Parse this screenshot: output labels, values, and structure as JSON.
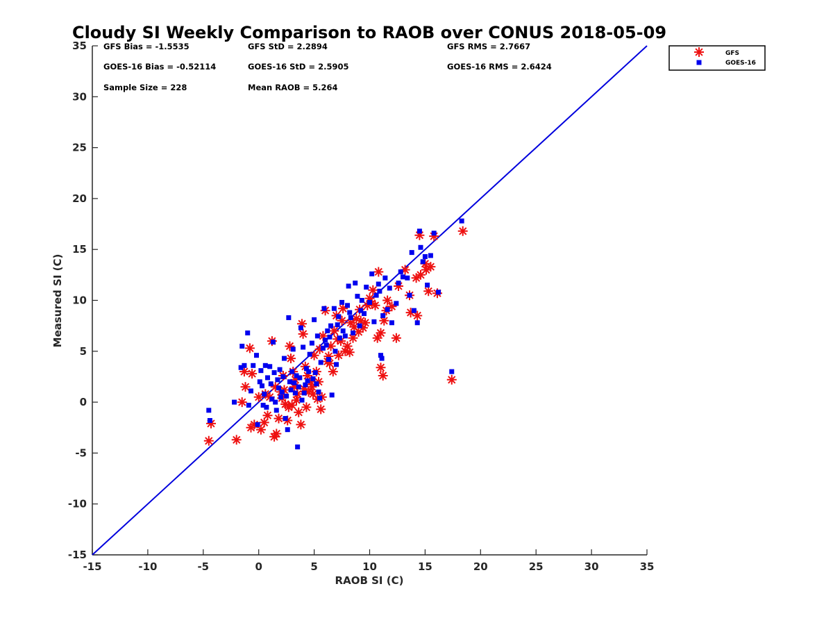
{
  "chart_data": {
    "type": "scatter",
    "title": "Cloudy SI Weekly Comparison to RAOB over CONUS 2018-05-09",
    "xlabel": "RAOB SI (C)",
    "ylabel": "Measured SI (C)",
    "xlim": [
      -15,
      35
    ],
    "ylim": [
      -15,
      35
    ],
    "xticks": [
      -15,
      -10,
      -5,
      0,
      5,
      10,
      15,
      20,
      25,
      30,
      35
    ],
    "yticks": [
      -15,
      -10,
      -5,
      0,
      5,
      10,
      15,
      20,
      25,
      30,
      35
    ],
    "grid": false,
    "legend_position": "top-right outside",
    "reference_line": {
      "x": [
        -15,
        35
      ],
      "y": [
        -15,
        35
      ],
      "color": "#0000dd"
    },
    "stats": [
      "GFS Bias = -1.5535",
      "GFS StD = 2.2894",
      "GFS RMS = 2.7667",
      "GOES-16 Bias = -0.52114",
      "GOES-16 StD = 2.5905",
      "GOES-16 RMS = 2.6424",
      "Sample Size = 228",
      "Mean RAOB = 5.264"
    ],
    "series": [
      {
        "name": "GFS",
        "marker": "asterisk",
        "color": "#ee1111",
        "points": [
          [
            -4.5,
            -3.8
          ],
          [
            -4.3,
            -2.1
          ],
          [
            -2.0,
            -3.7
          ],
          [
            -1.5,
            0.0
          ],
          [
            -1.2,
            1.5
          ],
          [
            -1.3,
            3.0
          ],
          [
            -0.8,
            5.3
          ],
          [
            -0.6,
            2.8
          ],
          [
            -0.7,
            -2.5
          ],
          [
            -0.4,
            -2.2
          ],
          [
            0.2,
            -2.7
          ],
          [
            0.5,
            -2.0
          ],
          [
            0.8,
            -1.3
          ],
          [
            1.0,
            0.5
          ],
          [
            1.2,
            6.0
          ],
          [
            1.4,
            -3.4
          ],
          [
            1.6,
            -3.1
          ],
          [
            1.8,
            -1.6
          ],
          [
            2.0,
            1.0
          ],
          [
            2.2,
            2.6
          ],
          [
            2.4,
            -0.2
          ],
          [
            2.6,
            -1.8
          ],
          [
            2.8,
            5.5
          ],
          [
            2.9,
            4.3
          ],
          [
            3.1,
            3.0
          ],
          [
            3.2,
            1.5
          ],
          [
            3.4,
            0.2
          ],
          [
            3.6,
            -1.0
          ],
          [
            3.8,
            -2.2
          ],
          [
            3.9,
            7.7
          ],
          [
            4.0,
            6.7
          ],
          [
            4.2,
            3.5
          ],
          [
            4.3,
            -0.5
          ],
          [
            4.5,
            1.0
          ],
          [
            4.7,
            2.0
          ],
          [
            4.9,
            0.8
          ],
          [
            5.0,
            4.6
          ],
          [
            5.2,
            3.0
          ],
          [
            5.4,
            2.0
          ],
          [
            5.5,
            5.2
          ],
          [
            5.6,
            -0.7
          ],
          [
            5.7,
            0.5
          ],
          [
            5.8,
            6.5
          ],
          [
            6.0,
            9.0
          ],
          [
            6.2,
            4.0
          ],
          [
            6.4,
            3.8
          ],
          [
            6.5,
            5.5
          ],
          [
            6.7,
            3.0
          ],
          [
            6.8,
            7.0
          ],
          [
            7.0,
            8.5
          ],
          [
            7.2,
            4.6
          ],
          [
            7.4,
            6.0
          ],
          [
            7.5,
            8.0
          ],
          [
            7.6,
            9.2
          ],
          [
            7.8,
            5.0
          ],
          [
            8.0,
            5.5
          ],
          [
            8.2,
            4.9
          ],
          [
            8.3,
            7.8
          ],
          [
            8.5,
            6.3
          ],
          [
            8.6,
            7.4
          ],
          [
            8.8,
            8.2
          ],
          [
            9.0,
            6.9
          ],
          [
            9.2,
            8.0
          ],
          [
            9.4,
            7.3
          ],
          [
            9.6,
            7.8
          ],
          [
            9.8,
            9.5
          ],
          [
            10.0,
            10.2
          ],
          [
            10.2,
            9.7
          ],
          [
            10.5,
            9.5
          ],
          [
            10.7,
            6.3
          ],
          [
            10.8,
            12.8
          ],
          [
            11.0,
            6.8
          ],
          [
            11.0,
            3.4
          ],
          [
            11.2,
            2.6
          ],
          [
            11.3,
            8.0
          ],
          [
            11.5,
            9.0
          ],
          [
            11.6,
            10.0
          ],
          [
            12.0,
            9.4
          ],
          [
            12.4,
            6.3
          ],
          [
            12.6,
            11.4
          ],
          [
            13.2,
            13.0
          ],
          [
            13.6,
            10.5
          ],
          [
            13.7,
            8.8
          ],
          [
            14.2,
            12.2
          ],
          [
            14.3,
            8.5
          ],
          [
            14.5,
            16.4
          ],
          [
            14.6,
            12.5
          ],
          [
            15.0,
            13.6
          ],
          [
            15.1,
            13.0
          ],
          [
            15.3,
            10.9
          ],
          [
            15.5,
            13.3
          ],
          [
            15.8,
            16.3
          ],
          [
            16.1,
            10.7
          ],
          [
            17.4,
            2.2
          ],
          [
            18.4,
            16.8
          ],
          [
            0.0,
            0.5
          ],
          [
            0.6,
            0.8
          ],
          [
            1.5,
            1.5
          ],
          [
            2.1,
            0.4
          ],
          [
            2.7,
            -0.5
          ],
          [
            3.3,
            2.2
          ],
          [
            3.5,
            0.8
          ],
          [
            4.1,
            1.3
          ],
          [
            4.4,
            2.6
          ],
          [
            4.8,
            1.5
          ],
          [
            5.3,
            0.3
          ],
          [
            2.3,
            1.2
          ],
          [
            3.0,
            -0.3
          ],
          [
            6.3,
            4.5
          ],
          [
            7.1,
            6.2
          ],
          [
            9.1,
            9.1
          ],
          [
            10.3,
            11.0
          ]
        ]
      },
      {
        "name": "GOES-16",
        "marker": "square",
        "color": "#0000ee",
        "points": [
          [
            -4.5,
            -0.8
          ],
          [
            -4.4,
            -1.8
          ],
          [
            -2.2,
            0.0
          ],
          [
            -1.6,
            3.4
          ],
          [
            -1.5,
            5.5
          ],
          [
            -1.3,
            3.6
          ],
          [
            -1.0,
            6.8
          ],
          [
            -0.9,
            -0.3
          ],
          [
            -0.7,
            1.1
          ],
          [
            -0.5,
            3.6
          ],
          [
            -0.2,
            4.6
          ],
          [
            -0.1,
            -2.2
          ],
          [
            0.1,
            2.0
          ],
          [
            0.2,
            3.1
          ],
          [
            0.3,
            1.6
          ],
          [
            0.5,
            0.8
          ],
          [
            0.6,
            3.6
          ],
          [
            0.7,
            -0.5
          ],
          [
            0.8,
            2.4
          ],
          [
            1.0,
            3.5
          ],
          [
            1.1,
            1.8
          ],
          [
            1.3,
            5.9
          ],
          [
            1.4,
            2.9
          ],
          [
            1.5,
            0.0
          ],
          [
            1.6,
            -0.8
          ],
          [
            1.8,
            1.4
          ],
          [
            1.9,
            3.2
          ],
          [
            2.0,
            0.5
          ],
          [
            2.2,
            2.5
          ],
          [
            2.3,
            4.3
          ],
          [
            2.4,
            -1.6
          ],
          [
            2.6,
            -2.7
          ],
          [
            2.7,
            8.3
          ],
          [
            2.8,
            2.0
          ],
          [
            3.0,
            3.0
          ],
          [
            3.1,
            5.2
          ],
          [
            3.3,
            0.9
          ],
          [
            3.4,
            2.6
          ],
          [
            3.5,
            -4.4
          ],
          [
            3.6,
            1.5
          ],
          [
            3.8,
            7.3
          ],
          [
            4.0,
            5.4
          ],
          [
            4.1,
            0.9
          ],
          [
            4.3,
            3.3
          ],
          [
            4.4,
            2.1
          ],
          [
            4.6,
            4.7
          ],
          [
            4.8,
            5.8
          ],
          [
            5.0,
            8.1
          ],
          [
            5.1,
            2.9
          ],
          [
            5.3,
            6.5
          ],
          [
            5.5,
            0.4
          ],
          [
            5.6,
            3.9
          ],
          [
            5.8,
            5.3
          ],
          [
            5.9,
            9.2
          ],
          [
            6.0,
            6.1
          ],
          [
            6.2,
            7.0
          ],
          [
            6.3,
            4.2
          ],
          [
            6.5,
            7.5
          ],
          [
            6.6,
            0.7
          ],
          [
            6.8,
            9.2
          ],
          [
            6.9,
            5.0
          ],
          [
            7.0,
            3.7
          ],
          [
            7.2,
            8.4
          ],
          [
            7.3,
            6.3
          ],
          [
            7.5,
            9.8
          ],
          [
            7.6,
            7.0
          ],
          [
            7.8,
            6.5
          ],
          [
            8.0,
            9.5
          ],
          [
            8.1,
            11.4
          ],
          [
            8.3,
            8.3
          ],
          [
            8.5,
            6.8
          ],
          [
            8.7,
            11.7
          ],
          [
            8.9,
            10.4
          ],
          [
            9.1,
            7.5
          ],
          [
            9.3,
            10.0
          ],
          [
            9.5,
            8.7
          ],
          [
            9.7,
            11.3
          ],
          [
            10.0,
            9.8
          ],
          [
            10.2,
            12.6
          ],
          [
            10.4,
            7.9
          ],
          [
            10.6,
            10.5
          ],
          [
            10.8,
            11.6
          ],
          [
            11.0,
            4.6
          ],
          [
            11.1,
            4.3
          ],
          [
            11.2,
            8.5
          ],
          [
            11.4,
            12.2
          ],
          [
            11.6,
            9.1
          ],
          [
            12.0,
            7.8
          ],
          [
            12.4,
            9.7
          ],
          [
            12.6,
            11.7
          ],
          [
            13.0,
            12.3
          ],
          [
            13.4,
            12.2
          ],
          [
            13.6,
            10.5
          ],
          [
            13.8,
            14.7
          ],
          [
            14.0,
            9.0
          ],
          [
            14.3,
            7.8
          ],
          [
            14.5,
            16.8
          ],
          [
            14.6,
            15.2
          ],
          [
            14.8,
            13.8
          ],
          [
            15.0,
            14.3
          ],
          [
            15.2,
            11.5
          ],
          [
            15.5,
            14.4
          ],
          [
            15.8,
            16.6
          ],
          [
            16.2,
            10.8
          ],
          [
            17.4,
            3.0
          ],
          [
            18.3,
            17.8
          ],
          [
            0.4,
            -0.3
          ],
          [
            1.2,
            0.3
          ],
          [
            1.7,
            2.2
          ],
          [
            2.5,
            0.6
          ],
          [
            2.9,
            1.2
          ],
          [
            3.2,
            1.9
          ],
          [
            3.7,
            2.4
          ],
          [
            4.2,
            1.7
          ],
          [
            4.5,
            3.0
          ],
          [
            4.9,
            2.3
          ],
          [
            5.2,
            1.8
          ],
          [
            5.4,
            1.0
          ],
          [
            6.1,
            5.6
          ],
          [
            6.4,
            6.4
          ],
          [
            7.1,
            7.6
          ],
          [
            8.2,
            8.8
          ],
          [
            9.2,
            9.0
          ],
          [
            10.9,
            10.9
          ],
          [
            11.8,
            11.2
          ],
          [
            12.8,
            12.8
          ],
          [
            2.1,
            1.0
          ],
          [
            3.9,
            0.2
          ]
        ]
      }
    ]
  }
}
